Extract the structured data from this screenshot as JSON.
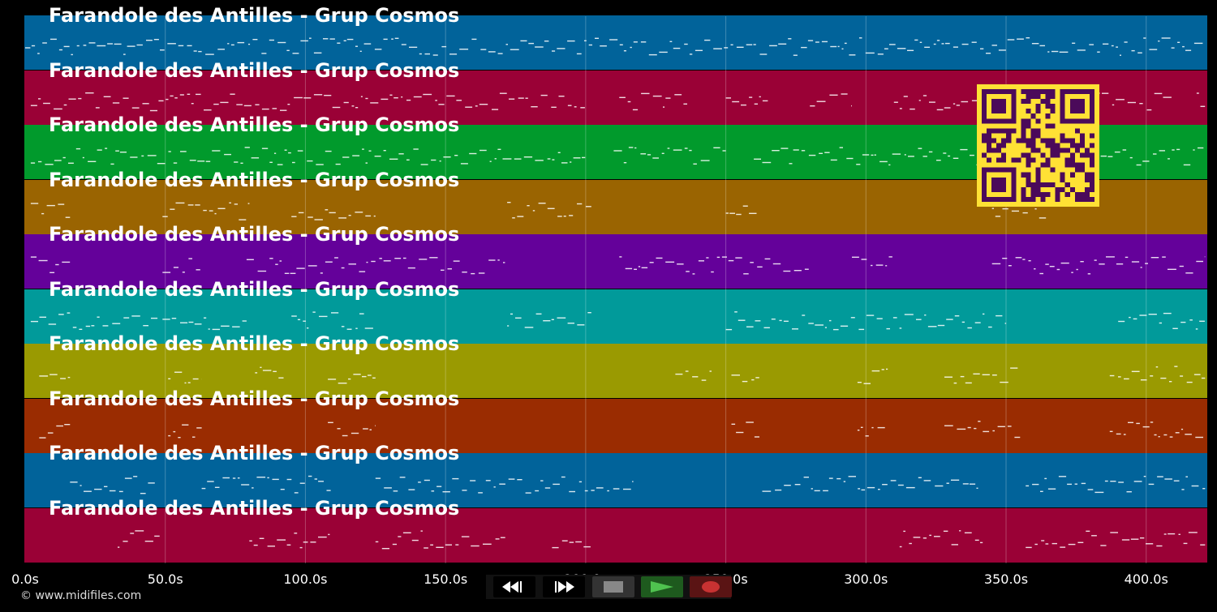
{
  "tracks": [
    {
      "title": "Farandole des Antilles - Grup Cosmos",
      "color": "#01639a"
    },
    {
      "title": "Farandole des Antilles - Grup Cosmos",
      "color": "#9a0136"
    },
    {
      "title": "Farandole des Antilles - Grup Cosmos",
      "color": "#019a2c"
    },
    {
      "title": "Farandole des Antilles - Grup Cosmos",
      "color": "#9a6401"
    },
    {
      "title": "Farandole des Antilles - Grup Cosmos",
      "color": "#64019a"
    },
    {
      "title": "Farandole des Antilles - Grup Cosmos",
      "color": "#019a9a"
    },
    {
      "title": "Farandole des Antilles - Grup Cosmos",
      "color": "#9a9a01"
    },
    {
      "title": "Farandole des Antilles - Grup Cosmos",
      "color": "#9a2c01"
    },
    {
      "title": "Farandole des Antilles - Grup Cosmos",
      "color": "#01639a"
    },
    {
      "title": "Farandole des Antilles - Grup Cosmos",
      "color": "#9a0136"
    }
  ],
  "timeline": {
    "ticks": [
      "0.0s",
      "50.0s",
      "100.0s",
      "150.0s",
      "200.0s",
      "250.0s",
      "300.0s",
      "350.0s",
      "400.0s"
    ],
    "tick_values": [
      0,
      50,
      100,
      150,
      200,
      250,
      300,
      350,
      400
    ],
    "max_seconds": 421.5
  },
  "copyright": "© www.midifiles.com",
  "transport": {
    "rewind_icon": "rewind-icon",
    "fast_forward_icon": "fast-forward-icon",
    "stop_icon": "stop-icon",
    "play_icon": "play-icon",
    "record_icon": "record-icon"
  },
  "colors": {
    "background": "#000000",
    "qr_fg": "#4b0a5a",
    "qr_bg": "#ffe135"
  }
}
